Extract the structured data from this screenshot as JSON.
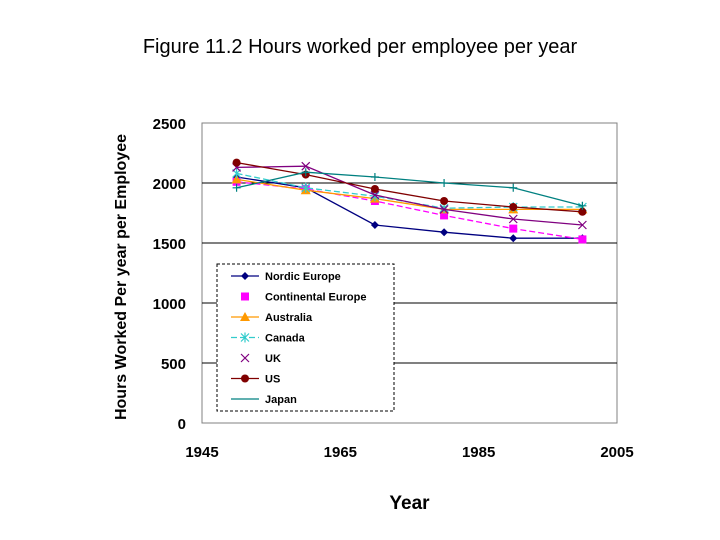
{
  "title": "Figure 11.2 Hours worked per employee per year",
  "chart_data": {
    "type": "line",
    "title": "Figure 11.2 Hours worked per employee per year",
    "xlabel": "Year",
    "ylabel": "Hours Worked Per year per Employee",
    "xlim": [
      1945,
      2005
    ],
    "ylim": [
      0,
      2500
    ],
    "xticks": [
      1945,
      1965,
      1985,
      2005
    ],
    "yticks": [
      0,
      500,
      1000,
      1500,
      2000,
      2500
    ],
    "grid": "horizontal",
    "legend_position": "lower-left",
    "series": [
      {
        "name": "Nordic Europe",
        "color": "#000080",
        "marker": "diamond",
        "dash": "",
        "x": [
          1950,
          1960,
          1970,
          1980,
          1990,
          2000
        ],
        "y": [
          2050,
          1960,
          1650,
          1590,
          1540,
          1540
        ]
      },
      {
        "name": "Continental Europe",
        "color": "#ff00ff",
        "marker": "square",
        "dash": "6,3",
        "x": [
          1950,
          1960,
          1970,
          1980,
          1990,
          2000
        ],
        "y": [
          2010,
          1950,
          1850,
          1730,
          1620,
          1530
        ]
      },
      {
        "name": "Australia",
        "color": "#ff9900",
        "marker": "triangle",
        "dash": "",
        "x": [
          1950,
          1960,
          1970,
          1980,
          1990,
          2000
        ],
        "y": [
          2030,
          1940,
          1870,
          1780,
          1780,
          1780
        ]
      },
      {
        "name": "Canada",
        "color": "#33cccc",
        "marker": "asterisk",
        "dash": "6,3",
        "x": [
          1950,
          1960,
          1970,
          1980,
          1990,
          2000
        ],
        "y": [
          2080,
          1960,
          1890,
          1790,
          1800,
          1800
        ]
      },
      {
        "name": "UK",
        "color": "#800080",
        "marker": "x",
        "dash": "",
        "x": [
          1950,
          1960,
          1970,
          1980,
          1990,
          2000
        ],
        "y": [
          2130,
          2140,
          1900,
          1780,
          1700,
          1650
        ]
      },
      {
        "name": "US",
        "color": "#800000",
        "marker": "circle",
        "dash": "",
        "x": [
          1950,
          1960,
          1970,
          1980,
          1990,
          2000
        ],
        "y": [
          2170,
          2070,
          1950,
          1850,
          1800,
          1760
        ]
      },
      {
        "name": "Japan",
        "color": "#008080",
        "marker": "plus",
        "dash": "",
        "x": [
          1950,
          1960,
          1970,
          1980,
          1990,
          2000
        ],
        "y": [
          1960,
          2090,
          2050,
          2000,
          1960,
          1810
        ]
      }
    ]
  }
}
